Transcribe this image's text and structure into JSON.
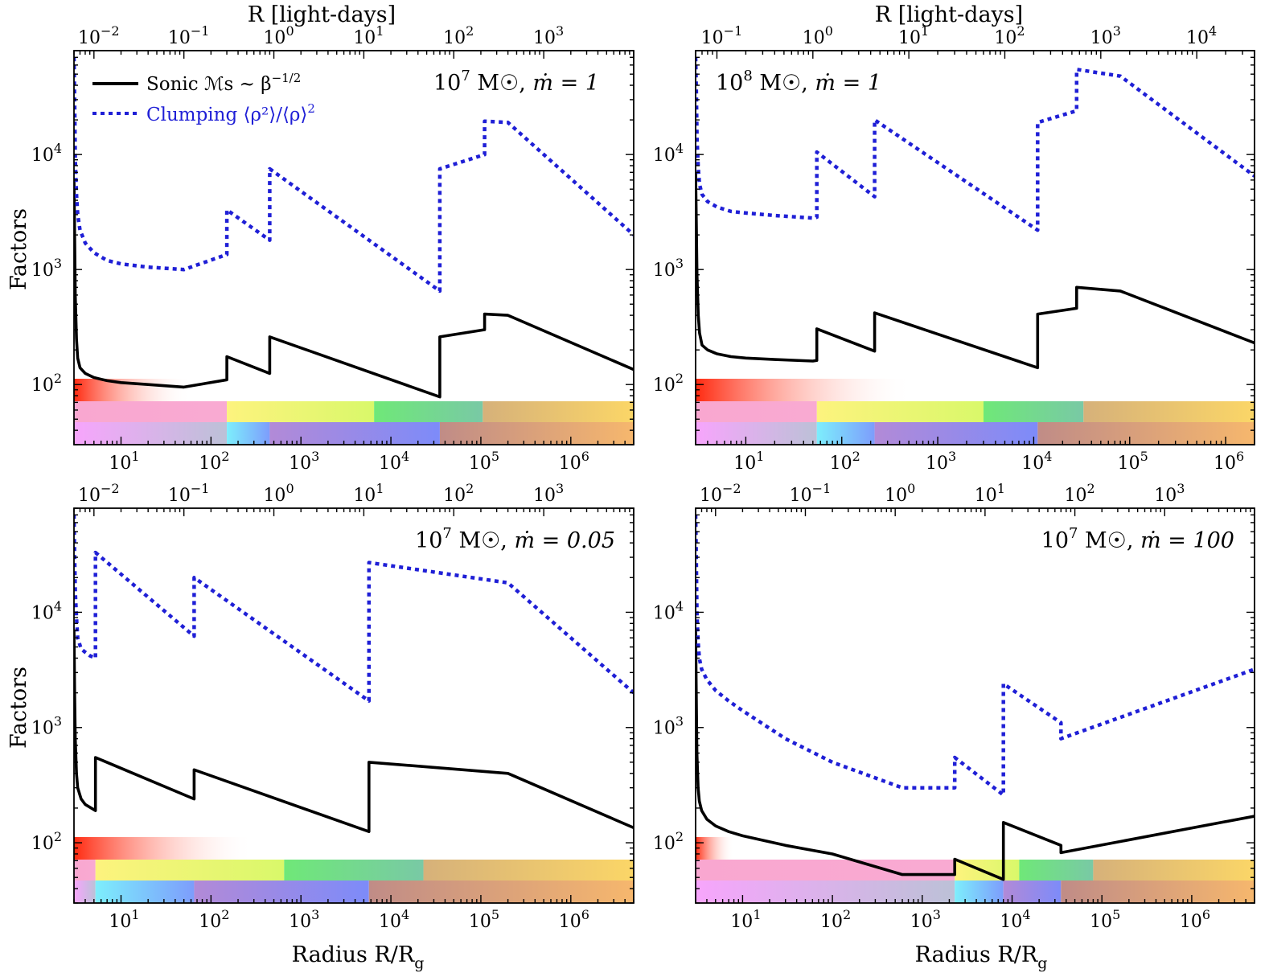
{
  "figure": {
    "top_axis_label": "R [light-days]",
    "bottom_axis_label": "Radius R/R",
    "bottom_axis_label_sub": "g",
    "y_axis_label": "Factors"
  },
  "legend": {
    "sonic_label": "Sonic ℳs ~ β",
    "sonic_exp": "−1/2",
    "clump_label": "Clumping ⟨ρ²⟩/⟨ρ⟩",
    "clump_exp": "2",
    "sonic_color": "#000000",
    "clump_color": "#1f1fd6"
  },
  "chart_data": [
    {
      "type": "line",
      "title": "10^7 M☉, ṁ = 1",
      "title_parts": {
        "mass_base": "10",
        "mass_exp": "7",
        "mass_unit": " M☉, ",
        "mdot": "ṁ = 1"
      },
      "xscale": "log",
      "yscale": "log",
      "xlim": [
        3,
        5000000
      ],
      "ylim": [
        30,
        80000
      ],
      "xlabel": "Radius R/R_g",
      "ylabel": "Factors",
      "x_ticks": [
        "10^1",
        "10^2",
        "10^3",
        "10^4",
        "10^5",
        "10^6"
      ],
      "top_axis": {
        "label": "R [light-days]",
        "x_at_1_lightday": 500,
        "ticks": [
          "10^-2",
          "10^-1",
          "10^0",
          "10^1",
          "10^2",
          "10^3"
        ]
      },
      "y_ticks": [
        "10^2",
        "10^3",
        "10^4"
      ],
      "series": [
        {
          "name": "Sonic",
          "style": "solid",
          "x": [
            3,
            3.05,
            3.1,
            3.2,
            3.3,
            3.5,
            4,
            5,
            7,
            10,
            20,
            50,
            150,
            150,
            450,
            450,
            35000,
            35000,
            110000,
            110000,
            200000,
            5000000
          ],
          "y": [
            6000,
            2000,
            600,
            250,
            170,
            140,
            125,
            115,
            108,
            104,
            100,
            95,
            110,
            175,
            125,
            260,
            78,
            260,
            300,
            410,
            400,
            135
          ]
        },
        {
          "name": "Clumping",
          "style": "dotted",
          "x": [
            3,
            3.05,
            3.1,
            3.2,
            3.3,
            3.5,
            4,
            5,
            7,
            10,
            20,
            50,
            150,
            150,
            450,
            450,
            35000,
            35000,
            110000,
            110000,
            200000,
            5000000
          ],
          "y": [
            70000,
            30000,
            9000,
            4500,
            3000,
            2200,
            1700,
            1400,
            1200,
            1120,
            1050,
            1000,
            1350,
            3300,
            1800,
            7500,
            650,
            7500,
            10000,
            19500,
            19000,
            2000
          ]
        }
      ],
      "bands": {
        "red_gradient_end_x": 60,
        "middle_row": [
          {
            "x0": 3,
            "x1": 150,
            "colors": [
              "#f9a7d0",
              "#f9aad2"
            ]
          },
          {
            "x0": 150,
            "x1": 6500,
            "colors": [
              "#fdf37e",
              "#d9f86a"
            ]
          },
          {
            "x0": 6500,
            "x1": 105000,
            "colors": [
              "#6fe878",
              "#79c9a5"
            ]
          },
          {
            "x0": 105000,
            "x1": 5000000,
            "colors": [
              "#d6b17a",
              "#fbd667"
            ]
          }
        ],
        "bottom_row": [
          {
            "x0": 3,
            "x1": 150,
            "colors": [
              "#f7a5fc",
              "#bcc1d7"
            ]
          },
          {
            "x0": 150,
            "x1": 450,
            "colors": [
              "#7deefc",
              "#7d9dfc"
            ]
          },
          {
            "x0": 450,
            "x1": 35000,
            "colors": [
              "#b28ad7",
              "#7d8bf9"
            ]
          },
          {
            "x0": 35000,
            "x1": 5000000,
            "colors": [
              "#c08c87",
              "#f6b76d"
            ]
          }
        ]
      }
    },
    {
      "type": "line",
      "title": "10^8 M☉, ṁ = 1",
      "title_parts": {
        "mass_base": "10",
        "mass_exp": "8",
        "mass_unit": " M☉, ",
        "mdot": "ṁ = 1"
      },
      "xscale": "log",
      "yscale": "log",
      "xlim": [
        3,
        2000000
      ],
      "ylim": [
        30,
        80000
      ],
      "xlabel": "Radius R/R_g",
      "ylabel": "Factors",
      "x_ticks": [
        "10^1",
        "10^2",
        "10^3",
        "10^4",
        "10^5",
        "10^6"
      ],
      "top_axis": {
        "label": "R [light-days]",
        "x_at_1_lightday": 50,
        "ticks": [
          "10^-1",
          "10^0",
          "10^1",
          "10^2",
          "10^3",
          "10^4"
        ]
      },
      "y_ticks": [
        "10^2",
        "10^3",
        "10^4"
      ],
      "series": [
        {
          "name": "Sonic",
          "style": "solid",
          "x": [
            3,
            3.05,
            3.1,
            3.2,
            3.3,
            3.5,
            4,
            5,
            7,
            10,
            20,
            50,
            55,
            55,
            220,
            220,
            11000,
            11000,
            28000,
            28000,
            80000,
            2000000
          ],
          "y": [
            7000,
            2500,
            900,
            400,
            280,
            220,
            200,
            185,
            175,
            170,
            165,
            160,
            162,
            305,
            195,
            420,
            140,
            410,
            460,
            700,
            650,
            230
          ]
        },
        {
          "name": "Clumping",
          "style": "dotted",
          "x": [
            3,
            3.05,
            3.1,
            3.2,
            3.3,
            3.5,
            4,
            5,
            7,
            10,
            20,
            50,
            55,
            55,
            220,
            220,
            11000,
            11000,
            28000,
            28000,
            80000,
            2000000
          ],
          "y": [
            70000,
            35000,
            14000,
            7500,
            5500,
            4500,
            3900,
            3500,
            3200,
            3100,
            2950,
            2800,
            2850,
            10500,
            4300,
            20000,
            2200,
            19000,
            24000,
            55000,
            48000,
            6500
          ]
        }
      ],
      "bands": {
        "red_gradient_end_x": 550,
        "middle_row": [
          {
            "x0": 3,
            "x1": 55,
            "colors": [
              "#f9a7d0",
              "#f9aad2"
            ]
          },
          {
            "x0": 55,
            "x1": 3000,
            "colors": [
              "#fdf37e",
              "#d9f86a"
            ]
          },
          {
            "x0": 3000,
            "x1": 33000,
            "colors": [
              "#6fe878",
              "#79c9a5"
            ]
          },
          {
            "x0": 33000,
            "x1": 2000000,
            "colors": [
              "#d6b17a",
              "#fbd667"
            ]
          }
        ],
        "bottom_row": [
          {
            "x0": 3,
            "x1": 55,
            "colors": [
              "#f7a5fc",
              "#bcc1d7"
            ]
          },
          {
            "x0": 55,
            "x1": 220,
            "colors": [
              "#7deefc",
              "#7d9dfc"
            ]
          },
          {
            "x0": 220,
            "x1": 11000,
            "colors": [
              "#b28ad7",
              "#7d8bf9"
            ]
          },
          {
            "x0": 11000,
            "x1": 2000000,
            "colors": [
              "#c08c87",
              "#f6b76d"
            ]
          }
        ]
      }
    },
    {
      "type": "line",
      "title": "10^7 M☉, ṁ = 0.05",
      "title_parts": {
        "mass_base": "10",
        "mass_exp": "7",
        "mass_unit": " M☉, ",
        "mdot": "ṁ = 0.05"
      },
      "xscale": "log",
      "yscale": "log",
      "xlim": [
        3,
        5000000
      ],
      "ylim": [
        30,
        80000
      ],
      "xlabel": "Radius R/R_g",
      "ylabel": "Factors",
      "x_ticks": [
        "10^1",
        "10^2",
        "10^3",
        "10^4",
        "10^5",
        "10^6"
      ],
      "top_axis": {
        "label": "R [light-days]",
        "x_at_1_lightday": 500,
        "ticks": [
          "10^-2",
          "10^-1",
          "10^0",
          "10^1",
          "10^2",
          "10^3"
        ]
      },
      "y_ticks": [
        "10^2",
        "10^3",
        "10^4"
      ],
      "series": [
        {
          "name": "Sonic",
          "style": "solid",
          "x": [
            3,
            3.05,
            3.1,
            3.2,
            3.3,
            3.6,
            4,
            5.2,
            5.2,
            65,
            65,
            5700,
            5700,
            200000,
            5000000
          ],
          "y": [
            7000,
            2000,
            800,
            400,
            300,
            240,
            215,
            190,
            550,
            240,
            430,
            125,
            500,
            400,
            135
          ]
        },
        {
          "name": "Clumping",
          "style": "dotted",
          "x": [
            3,
            3.05,
            3.1,
            3.2,
            3.3,
            3.6,
            4,
            4.5,
            5.2,
            5.2,
            65,
            65,
            5700,
            5700,
            200000,
            5000000
          ],
          "y": [
            70000,
            30000,
            15000,
            9000,
            6000,
            4800,
            4500,
            4200,
            4000,
            33000,
            6200,
            20000,
            1700,
            27000,
            18000,
            2000
          ]
        }
      ],
      "bands": {
        "red_gradient_end_x": 300,
        "middle_row": [
          {
            "x0": 3,
            "x1": 5.2,
            "colors": [
              "#f9a7d0",
              "#f9aad2"
            ]
          },
          {
            "x0": 5.2,
            "x1": 650,
            "colors": [
              "#fdf37e",
              "#d9f86a"
            ]
          },
          {
            "x0": 650,
            "x1": 23000,
            "colors": [
              "#6fe878",
              "#79c9a5"
            ]
          },
          {
            "x0": 23000,
            "x1": 5000000,
            "colors": [
              "#d6b17a",
              "#fbd667"
            ]
          }
        ],
        "bottom_row": [
          {
            "x0": 3,
            "x1": 5.2,
            "colors": [
              "#f7a5fc",
              "#bcc1d7"
            ]
          },
          {
            "x0": 5.2,
            "x1": 65,
            "colors": [
              "#7deefc",
              "#7d9dfc"
            ]
          },
          {
            "x0": 65,
            "x1": 5700,
            "colors": [
              "#b28ad7",
              "#7d8bf9"
            ]
          },
          {
            "x0": 5700,
            "x1": 5000000,
            "colors": [
              "#c08c87",
              "#f6b76d"
            ]
          }
        ]
      }
    },
    {
      "type": "line",
      "title": "10^7 M☉, ṁ = 100",
      "title_parts": {
        "mass_base": "10",
        "mass_exp": "7",
        "mass_unit": " M☉, ",
        "mdot": "ṁ = 100"
      },
      "xscale": "log",
      "yscale": "log",
      "xlim": [
        3,
        5000000
      ],
      "ylim": [
        30,
        80000
      ],
      "xlabel": "Radius R/R_g",
      "ylabel": "Factors",
      "x_ticks": [
        "10^1",
        "10^2",
        "10^3",
        "10^4",
        "10^5",
        "10^6"
      ],
      "top_axis": {
        "label": "R [light-days]",
        "x_at_1_lightday": 500,
        "ticks": [
          "10^-2",
          "10^-1",
          "10^0",
          "10^1",
          "10^2",
          "10^3"
        ]
      },
      "y_ticks": [
        "10^2",
        "10^3",
        "10^4"
      ],
      "series": [
        {
          "name": "Sonic",
          "style": "solid",
          "x": [
            3,
            3.05,
            3.1,
            3.2,
            3.3,
            3.5,
            4,
            5,
            7,
            10,
            30,
            100,
            600,
            2300,
            2300,
            8000,
            8000,
            35000,
            35000,
            5000000
          ],
          "y": [
            7000,
            2000,
            600,
            300,
            230,
            190,
            160,
            140,
            125,
            115,
            95,
            80,
            53,
            53,
            72,
            48,
            150,
            95,
            82,
            170
          ]
        },
        {
          "name": "Clumping",
          "style": "dotted",
          "x": [
            3,
            3.05,
            3.1,
            3.2,
            3.3,
            3.5,
            4,
            5,
            7,
            10,
            30,
            100,
            600,
            2300,
            2300,
            8000,
            8000,
            35000,
            35000,
            5000000
          ],
          "y": [
            70000,
            30000,
            10000,
            5500,
            4000,
            3200,
            2600,
            2100,
            1700,
            1400,
            800,
            500,
            300,
            300,
            550,
            260,
            2400,
            1100,
            800,
            3200
          ]
        }
      ],
      "bands": {
        "red_gradient_end_x": 8,
        "middle_row": [
          {
            "x0": 3,
            "x1": 2300,
            "colors": [
              "#f9a7d0",
              "#f9aad2"
            ]
          },
          {
            "x0": 2300,
            "x1": 12000,
            "colors": [
              "#fdf37e",
              "#d9f86a"
            ]
          },
          {
            "x0": 12000,
            "x1": 80000,
            "colors": [
              "#6fe878",
              "#79c9a5"
            ]
          },
          {
            "x0": 80000,
            "x1": 5000000,
            "colors": [
              "#d6b17a",
              "#fbd667"
            ]
          }
        ],
        "bottom_row": [
          {
            "x0": 3,
            "x1": 2300,
            "colors": [
              "#f7a5fc",
              "#bcc1d7"
            ]
          },
          {
            "x0": 2300,
            "x1": 8000,
            "colors": [
              "#7deefc",
              "#7d9dfc"
            ]
          },
          {
            "x0": 8000,
            "x1": 35000,
            "colors": [
              "#b28ad7",
              "#7d8bf9"
            ]
          },
          {
            "x0": 35000,
            "x1": 5000000,
            "colors": [
              "#c08c87",
              "#f6b76d"
            ]
          }
        ]
      }
    }
  ]
}
